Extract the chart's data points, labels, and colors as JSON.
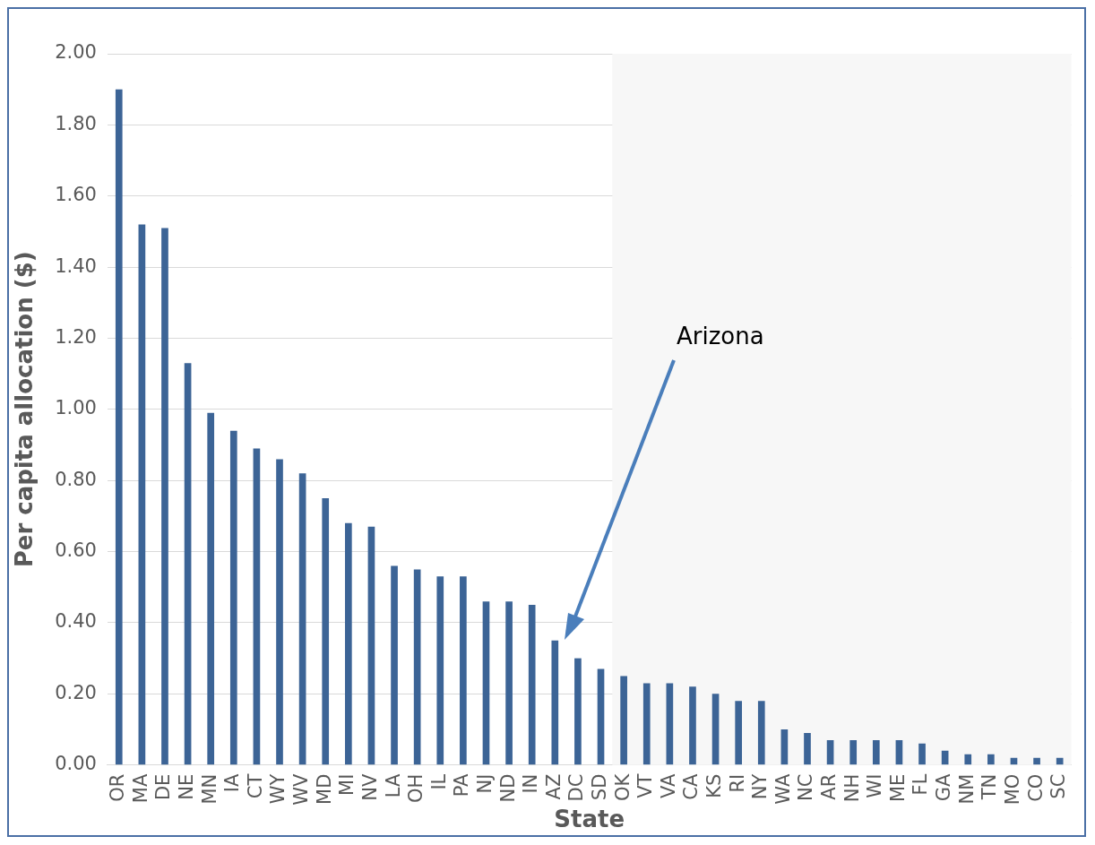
{
  "chart_data": {
    "type": "bar",
    "xlabel": "State",
    "ylabel": "Per capita allocation ($)",
    "categories": [
      "OR",
      "MA",
      "DE",
      "NE",
      "MN",
      "IA",
      "CT",
      "WY",
      "WV",
      "MD",
      "MI",
      "NV",
      "LA",
      "OH",
      "IL",
      "PA",
      "NJ",
      "ND",
      "IN",
      "AZ",
      "DC",
      "SD",
      "OK",
      "VT",
      "VA",
      "CA",
      "KS",
      "RI",
      "NY",
      "WA",
      "NC",
      "AR",
      "NH",
      "WI",
      "ME",
      "FL",
      "GA",
      "NM",
      "TN",
      "MO",
      "CO",
      "SC"
    ],
    "values": [
      1.9,
      1.52,
      1.51,
      1.13,
      0.99,
      0.94,
      0.89,
      0.86,
      0.82,
      0.75,
      0.68,
      0.67,
      0.56,
      0.55,
      0.53,
      0.53,
      0.46,
      0.46,
      0.45,
      0.35,
      0.3,
      0.27,
      0.25,
      0.23,
      0.23,
      0.22,
      0.2,
      0.18,
      0.18,
      0.1,
      0.09,
      0.07,
      0.07,
      0.07,
      0.07,
      0.06,
      0.04,
      0.03,
      0.03,
      0.02,
      0.02,
      0.02
    ],
    "color": "#3c6496",
    "ylim": [
      0,
      2
    ],
    "yticks": [
      {
        "value": 0,
        "label": "0.00"
      },
      {
        "value": 0.2,
        "label": "0.20"
      },
      {
        "value": 0.4,
        "label": "0.40"
      },
      {
        "value": 0.6,
        "label": "0.60"
      },
      {
        "value": 0.8,
        "label": "0.80"
      },
      {
        "value": 1,
        "label": "1.00"
      },
      {
        "value": 1.2,
        "label": "1.20"
      },
      {
        "value": 1.4,
        "label": "1.40"
      },
      {
        "value": 1.6,
        "label": "1.60"
      },
      {
        "value": 1.8,
        "label": "1.80"
      },
      {
        "value": 2,
        "label": "2.00"
      }
    ],
    "grid": "y",
    "legend": false,
    "bands": [
      {
        "axis": "x",
        "from": "OK",
        "to": "SC",
        "color": "#f7f7f7"
      }
    ],
    "annotations": [
      "Arizona"
    ]
  }
}
